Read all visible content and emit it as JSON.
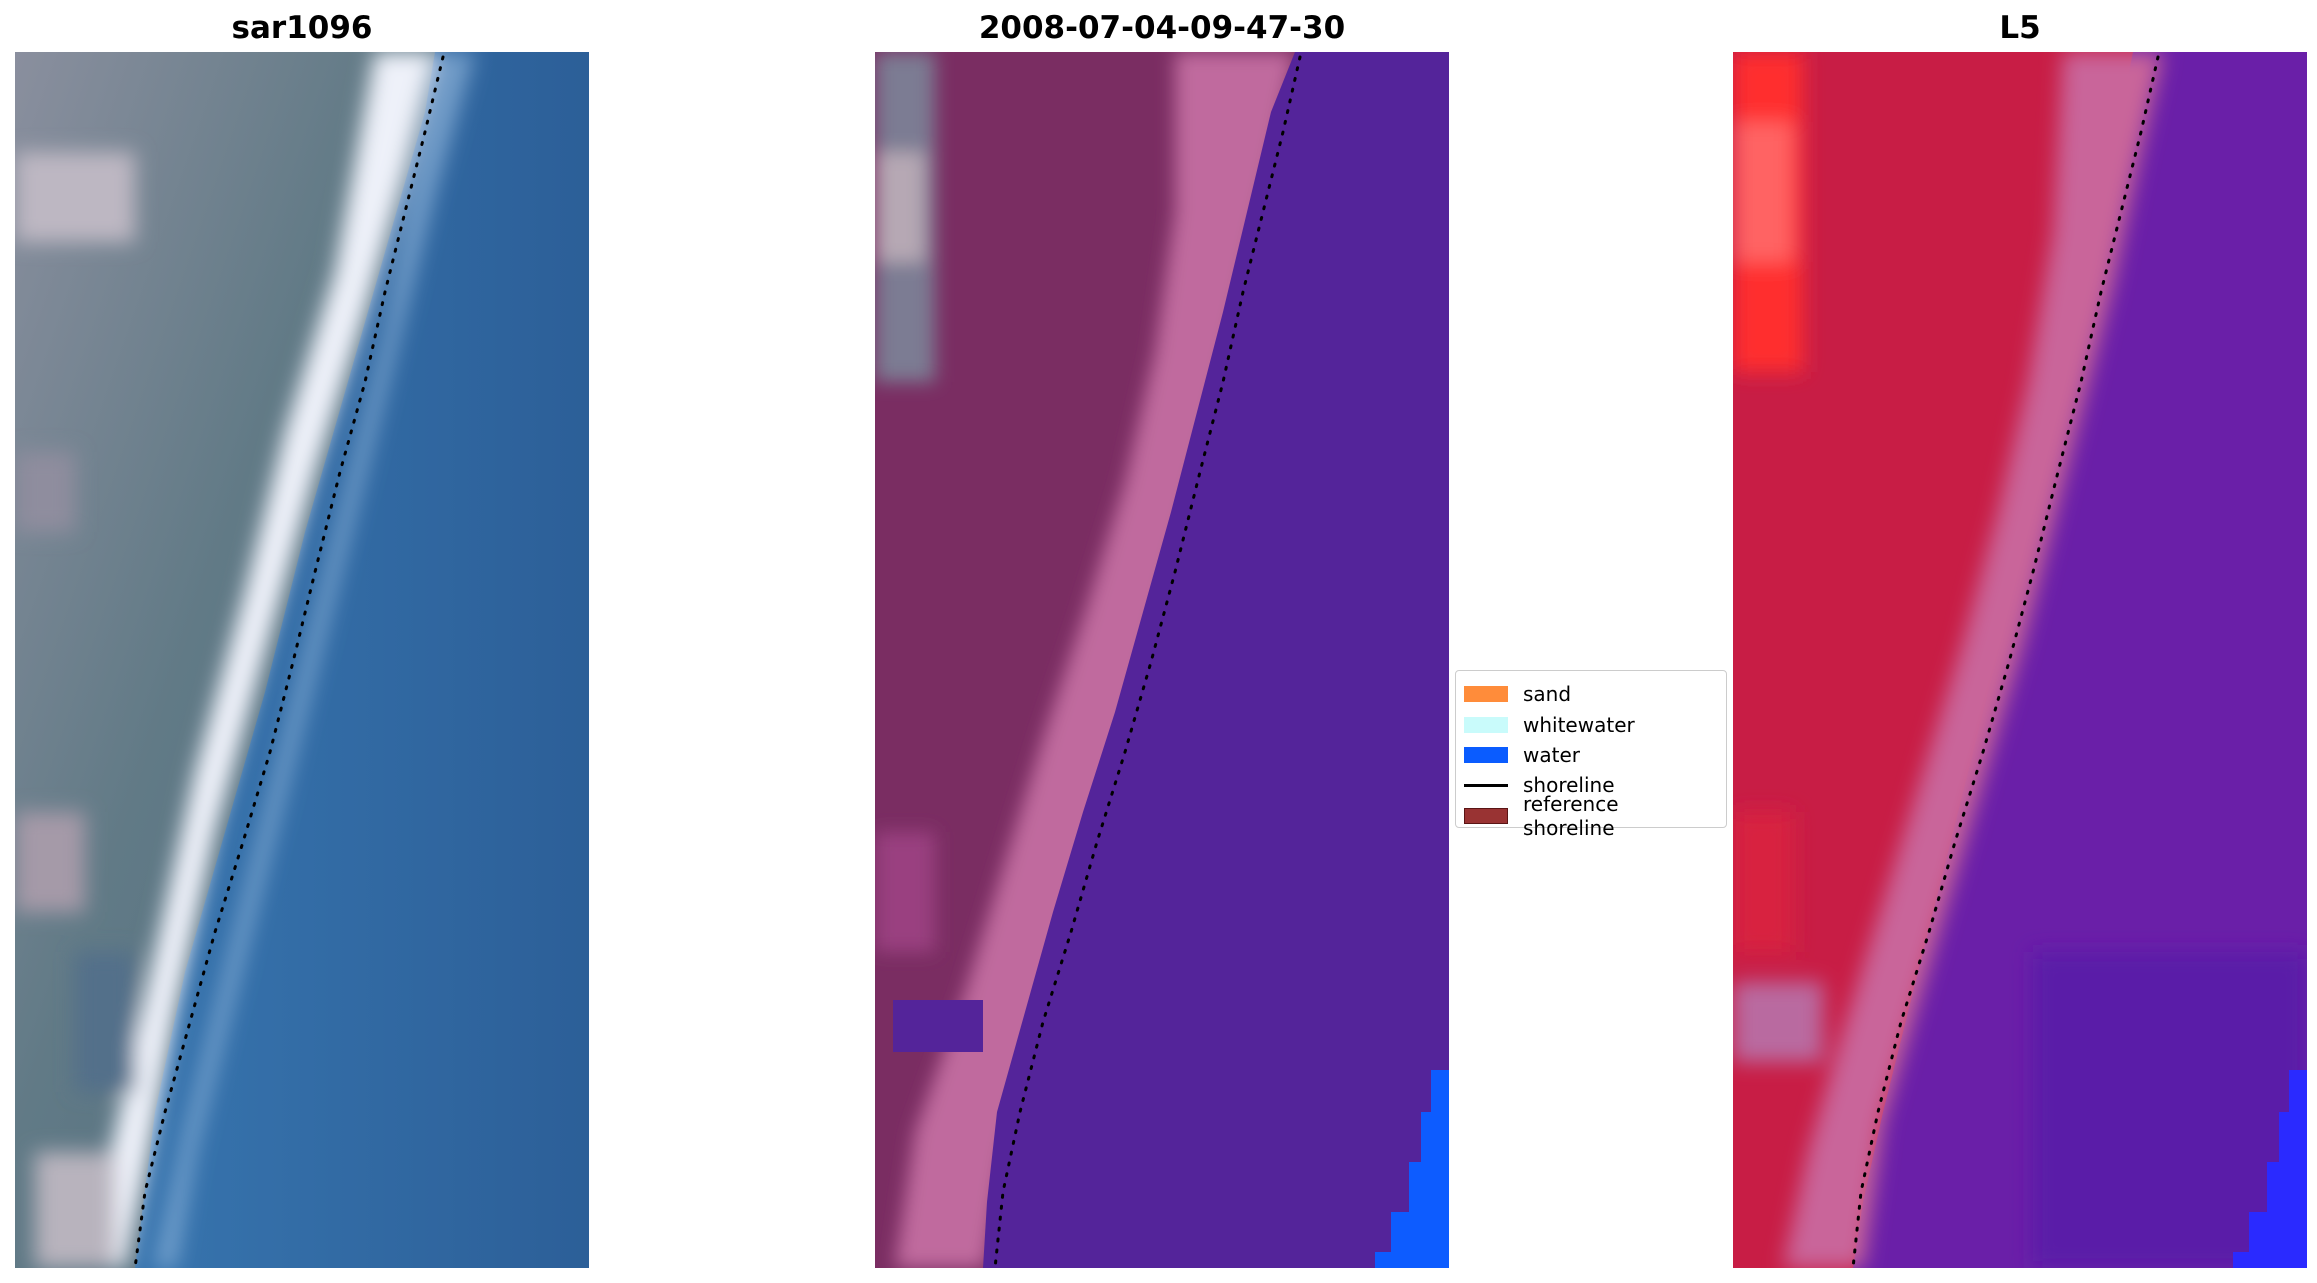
{
  "panels": [
    {
      "title": "sar1096",
      "style": "rgb-image"
    },
    {
      "title": "2008-07-04-09-47-30",
      "style": "classified"
    },
    {
      "title": "L5",
      "style": "index"
    }
  ],
  "legend": {
    "items": [
      {
        "label": "sand",
        "kind": "patch",
        "color": "#ff8c3a"
      },
      {
        "label": "whitewater",
        "kind": "patch",
        "color": "#c9fbfb"
      },
      {
        "label": "water",
        "kind": "patch",
        "color": "#0a5cff"
      },
      {
        "label": "shoreline",
        "kind": "line",
        "color": "#000000"
      },
      {
        "label": "reference shoreline",
        "kind": "patch",
        "color": "#993333"
      }
    ]
  },
  "colors": {
    "rgb_water": "#2f6da8",
    "rgb_land": "#6f7d8a",
    "rgb_surf": "#f2f4fa",
    "class_land": "#7a2d62",
    "class_beach": "#c06a9e",
    "class_water": "#54249a",
    "class_blue": "#0d5cff",
    "index_red": "#c81d45",
    "index_bright_red": "#ff2020",
    "index_purple": "#6a1fa8",
    "shoreline_dots": "#000000"
  }
}
